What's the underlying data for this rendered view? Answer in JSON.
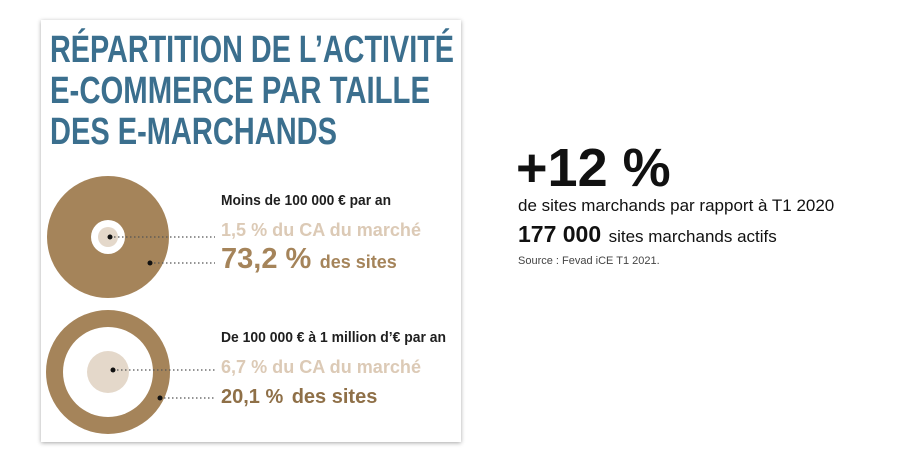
{
  "panel": {
    "title": [
      "RÉPARTITION DE L’ACTIVITÉ",
      "E-COMMERCE PAR TAILLE",
      "DES E-MARCHANDS"
    ],
    "groups": [
      {
        "heading": "Moins de 100 000 € par an",
        "ca": "1,5 % du CA du marché",
        "sites_value": "73,2 %",
        "sites_label": "des sites"
      },
      {
        "heading": "De 100 000 € à 1 million d’€ par an",
        "ca": "6,7 % du CA du marché",
        "sites_value": "20,1 %",
        "sites_label": "des sites"
      }
    ]
  },
  "stats": {
    "growth": "+12 %",
    "growth_caption": "de sites marchands par rapport à T1 2020",
    "sites_value": "177 000",
    "sites_label": "sites marchands actifs",
    "source": "Source : Fevad iCE T1 2021."
  }
}
